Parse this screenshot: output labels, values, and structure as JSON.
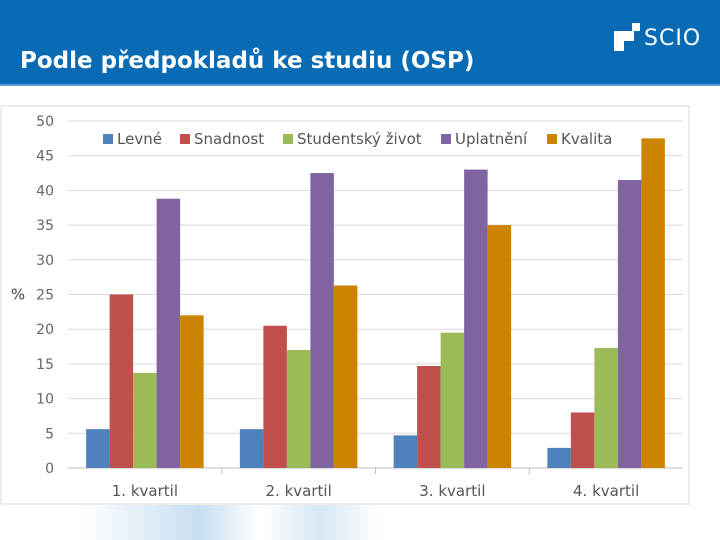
{
  "slide": {
    "title": "Podle předpokladů ke studiu (OSP)",
    "logo_text": "SCIO"
  },
  "colors": {
    "header_bg": "#0a6bb5",
    "series": [
      "#4f81bd",
      "#c0504d",
      "#9bbb59",
      "#8064a2",
      "#cc8400"
    ]
  },
  "chart_data": {
    "type": "bar",
    "title": "",
    "xlabel": "",
    "ylabel": "%",
    "ylim": [
      0,
      50
    ],
    "yticks": [
      0,
      5,
      10,
      15,
      20,
      25,
      30,
      35,
      40,
      45,
      50
    ],
    "grid": true,
    "legend": "top",
    "categories": [
      "1. kvartil",
      "2. kvartil",
      "3. kvartil",
      "4. kvartil"
    ],
    "series": [
      {
        "name": "Levné",
        "values": [
          5.6,
          5.6,
          4.7,
          2.9
        ]
      },
      {
        "name": "Snadnost",
        "values": [
          25,
          20.5,
          14.7,
          8
        ]
      },
      {
        "name": "Studentský život",
        "values": [
          13.7,
          17,
          19.5,
          17.3
        ]
      },
      {
        "name": "Uplatnění",
        "values": [
          38.8,
          42.5,
          43,
          41.5
        ]
      },
      {
        "name": "Kvalita",
        "values": [
          22,
          26.3,
          35,
          47.5
        ]
      }
    ]
  }
}
